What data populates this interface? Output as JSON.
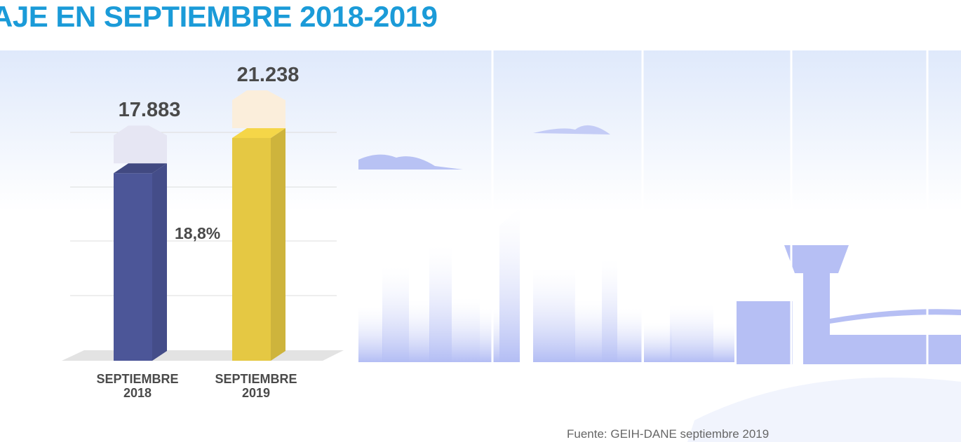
{
  "chart_data": {
    "type": "bar",
    "title": "AJE EN SEPTIEMBRE 2018-2019",
    "categories": [
      "SEPTIEMBRE 2018",
      "SEPTIEMBRE 2019"
    ],
    "values": [
      17883,
      21238
    ],
    "value_labels": [
      "17.883",
      "21.238"
    ],
    "colors": [
      "#4c5698",
      "#e5c843"
    ],
    "annotation": "18,8%",
    "source": "Fuente: GEIH-DANE septiembre 2019"
  }
}
